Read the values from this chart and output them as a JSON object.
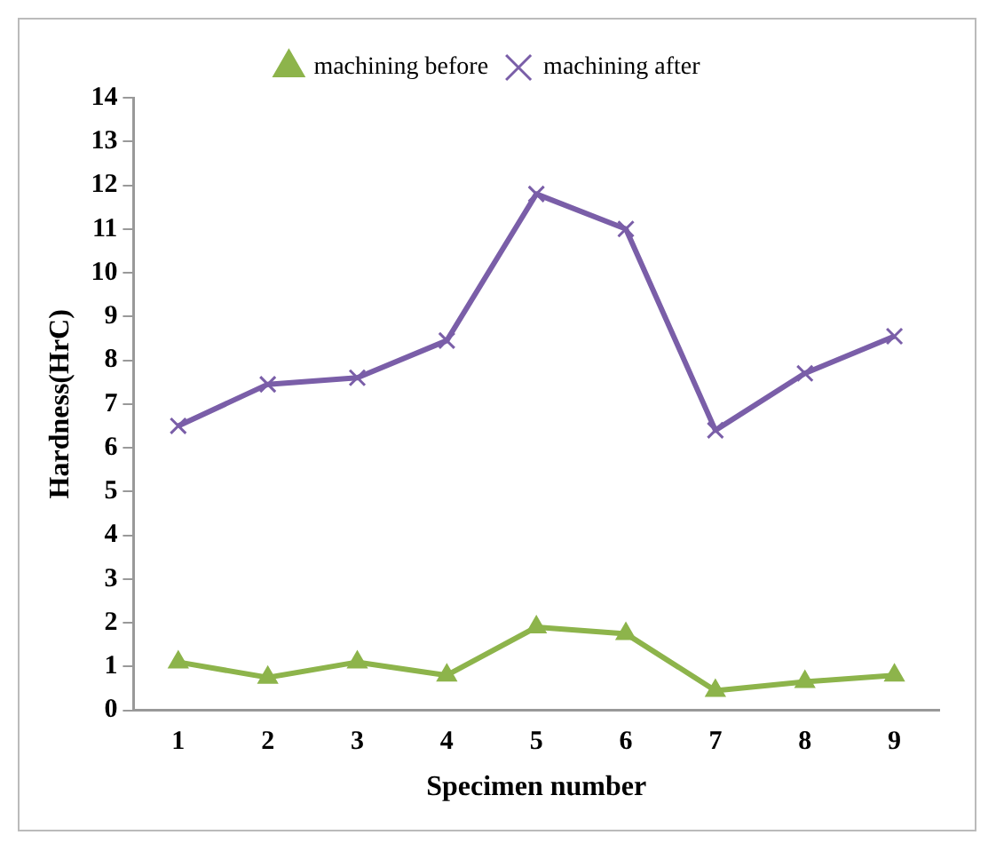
{
  "chart_data": {
    "type": "line",
    "xlabel": "Specimen number",
    "ylabel": "Hardness(HrC)",
    "categories": [
      "1",
      "2",
      "3",
      "4",
      "5",
      "6",
      "7",
      "8",
      "9"
    ],
    "series": [
      {
        "name": "machining before",
        "color": "#8db44b",
        "marker": "triangle",
        "values": [
          1.1,
          0.75,
          1.1,
          0.8,
          1.9,
          1.75,
          0.45,
          0.65,
          0.8
        ]
      },
      {
        "name": "machining after",
        "color": "#7a5ea8",
        "marker": "cross",
        "values": [
          6.5,
          7.45,
          7.6,
          8.45,
          11.8,
          11.0,
          6.4,
          7.7,
          8.55
        ]
      }
    ],
    "ylim": [
      0,
      14
    ],
    "yticks": [
      0,
      1,
      2,
      3,
      4,
      5,
      6,
      7,
      8,
      9,
      10,
      11,
      12,
      13,
      14
    ],
    "grid": false,
    "legend": "top",
    "line_style": "solid"
  }
}
